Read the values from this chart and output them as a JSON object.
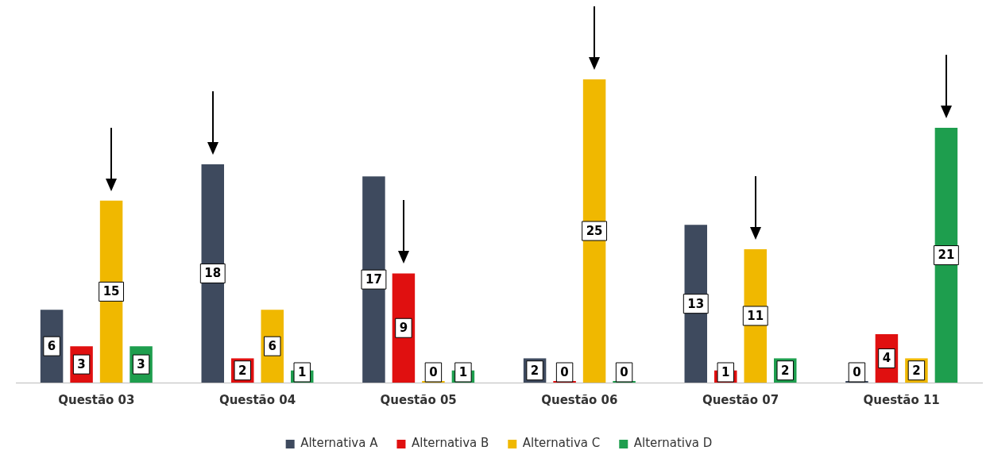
{
  "chart_data": {
    "type": "bar",
    "categories": [
      "Questão 03",
      "Questão 04",
      "Questão 05",
      "Questão 06",
      "Questão 07",
      "Questão 11"
    ],
    "series": [
      {
        "name": "Alternativa A",
        "color": "#3e4a5e",
        "values": [
          6,
          18,
          17,
          2,
          13,
          0
        ]
      },
      {
        "name": "Alternativa B",
        "color": "#e01010",
        "values": [
          3,
          2,
          9,
          0,
          1,
          4
        ]
      },
      {
        "name": "Alternativa C",
        "color": "#f0b800",
        "values": [
          15,
          6,
          0,
          25,
          11,
          2
        ]
      },
      {
        "name": "Alternativa D",
        "color": "#1e9e4e",
        "values": [
          3,
          1,
          1,
          0,
          2,
          21
        ]
      }
    ],
    "data_labels": true,
    "grid": false,
    "legend": "bottom",
    "tick_labels": "x"
  }
}
